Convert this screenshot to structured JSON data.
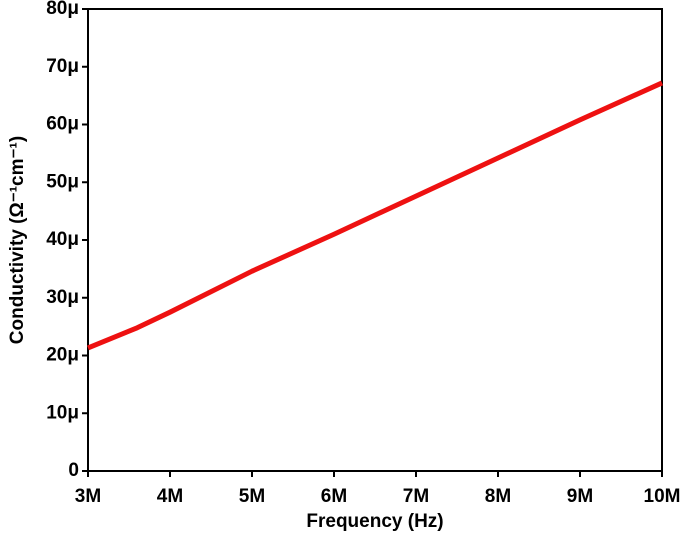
{
  "chart_data": {
    "type": "line",
    "x_label": "Frequency (Hz)",
    "y_label": "Conductivity (Ω⁻¹cm⁻¹)",
    "x": [
      3000000,
      3600000,
      4000000,
      5000000,
      6000000,
      7000000,
      8000000,
      9000000,
      10000000
    ],
    "series": [
      {
        "color": "#ee1111",
        "values": [
          2.13e-05,
          2.48e-05,
          2.75e-05,
          3.46e-05,
          4.1e-05,
          4.76e-05,
          5.42e-05,
          6.08e-05,
          6.72e-05
        ]
      }
    ],
    "xlim": [
      3000000,
      10000000
    ],
    "xticks": [
      {
        "value": 3000000,
        "label": "3M"
      },
      {
        "value": 4000000,
        "label": "4M"
      },
      {
        "value": 5000000,
        "label": "5M"
      },
      {
        "value": 6000000,
        "label": "6M"
      },
      {
        "value": 7000000,
        "label": "7M"
      },
      {
        "value": 8000000,
        "label": "8M"
      },
      {
        "value": 9000000,
        "label": "9M"
      },
      {
        "value": 10000000,
        "label": "10M"
      }
    ],
    "ylim": [
      0,
      8e-05
    ],
    "yticks": [
      0,
      {
        "value": 1e-05,
        "label": "10μ"
      },
      {
        "value": 2e-05,
        "label": "20μ"
      },
      {
        "value": 3e-05,
        "label": "30μ"
      },
      {
        "value": 4e-05,
        "label": "40μ"
      },
      {
        "value": 5e-05,
        "label": "50μ"
      },
      {
        "value": 6e-05,
        "label": "60μ"
      },
      {
        "value": 7e-05,
        "label": "70μ"
      },
      {
        "value": 8e-05,
        "label": "80μ"
      }
    ]
  }
}
